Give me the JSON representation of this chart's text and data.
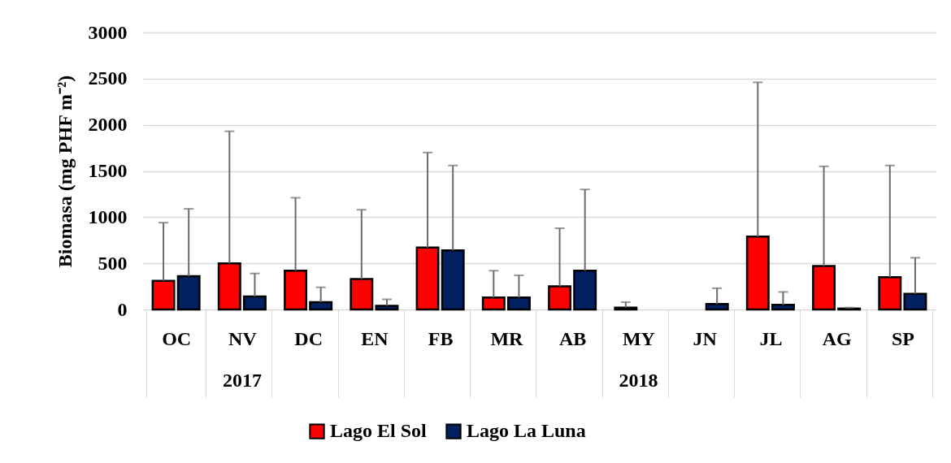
{
  "chart_data": {
    "type": "bar",
    "ylabel": "Biomasa (mg PHF m⁻²)",
    "categories": [
      "OC",
      "NV",
      "DC",
      "EN",
      "FB",
      "MR",
      "AB",
      "MY",
      "JN",
      "JL",
      "AG",
      "SP"
    ],
    "series": [
      {
        "name": "Lago El Sol",
        "color": "#ff0000",
        "values": [
          310,
          500,
          420,
          330,
          670,
          130,
          250,
          20,
          null,
          790,
          470,
          350
        ],
        "errors": [
          [
            310,
            940
          ],
          [
            500,
            1930
          ],
          [
            420,
            1210
          ],
          [
            330,
            1080
          ],
          [
            670,
            1700
          ],
          [
            130,
            420
          ],
          [
            250,
            880
          ],
          [
            20,
            80
          ],
          null,
          [
            790,
            2460
          ],
          [
            470,
            1550
          ],
          [
            350,
            1560
          ]
        ]
      },
      {
        "name": "Lago La Luna",
        "color": "#002060",
        "values": [
          360,
          140,
          80,
          40,
          640,
          130,
          420,
          null,
          60,
          50,
          10,
          170
        ],
        "errors": [
          [
            360,
            1090
          ],
          [
            140,
            390
          ],
          [
            80,
            240
          ],
          [
            40,
            110
          ],
          [
            640,
            1560
          ],
          [
            130,
            370
          ],
          [
            420,
            1300
          ],
          null,
          [
            60,
            230
          ],
          [
            50,
            190
          ],
          [
            10,
            20
          ],
          [
            170,
            560
          ]
        ]
      }
    ],
    "ylim": [
      0,
      3000
    ],
    "yticks": [
      0,
      500,
      1000,
      1500,
      2000,
      2500,
      3000
    ],
    "grid": "y",
    "legend": "bottom",
    "annotations": [
      "2017",
      "2018"
    ]
  }
}
